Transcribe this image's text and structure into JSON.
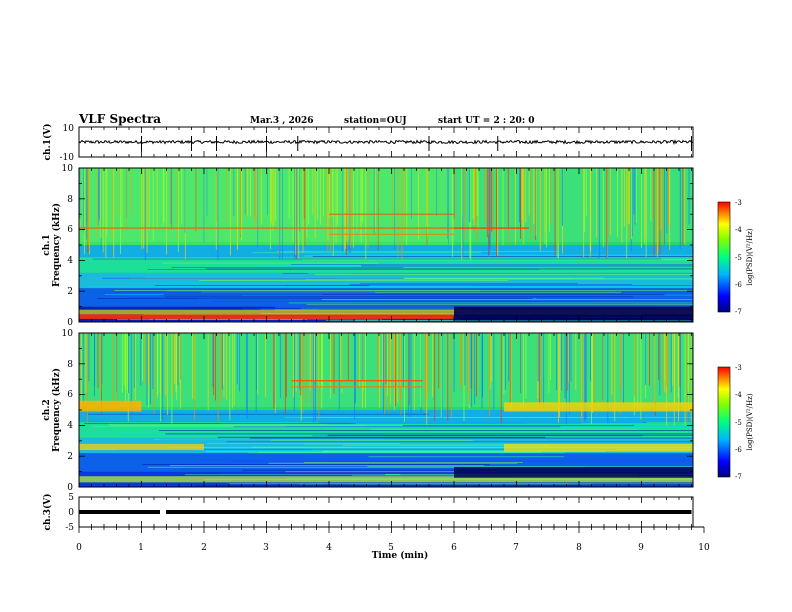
{
  "header": {
    "title": "VLF Spectra",
    "date": "Mar.3  , 2026",
    "station": "station=OUJ",
    "start_time": "start UT =  2 : 20: 0"
  },
  "chart_data": [
    {
      "type": "line",
      "id": "ch1-waveform",
      "ylabel": "ch.1(V)",
      "ylim": [
        -10,
        10
      ],
      "yticks": [
        "10",
        "-10"
      ],
      "xlim": [
        0,
        10
      ],
      "series": [
        {
          "color": "#000000",
          "baseline": 0,
          "noise_amplitude": 1,
          "spikes_at_min": [
            1.0,
            1.8,
            2.2,
            3.0,
            3.5,
            5.6,
            6.7,
            9.8
          ]
        }
      ]
    },
    {
      "type": "heatmap",
      "id": "ch1-spectrogram",
      "ylabel": "ch.1",
      "ylabel2": "Frequency  (kHz)",
      "ylim": [
        0,
        10
      ],
      "yticks": [
        "0",
        "2",
        "4",
        "6",
        "8",
        "10"
      ],
      "xlim": [
        0,
        10
      ],
      "colorbar": {
        "label": "log(PSD)(V²/Hz)",
        "range": [
          -7,
          -3
        ],
        "ticks": [
          "-3",
          "-4",
          "-5",
          "-6",
          "-7"
        ]
      }
    },
    {
      "type": "heatmap",
      "id": "ch2-spectrogram",
      "ylabel": "ch.2",
      "ylabel2": "Frequency  (kHz)",
      "ylim": [
        0,
        10
      ],
      "yticks": [
        "0",
        "2",
        "4",
        "6",
        "8",
        "10"
      ],
      "xlim": [
        0,
        10
      ],
      "colorbar": {
        "label": "log(PSD)(V²/Hz)",
        "range": [
          -7,
          -3
        ],
        "ticks": [
          "-3",
          "-4",
          "-5",
          "-6",
          "-7"
        ]
      }
    },
    {
      "type": "line",
      "id": "ch3-waveform",
      "ylabel": "ch.3(V)",
      "ylim": [
        -5,
        5
      ],
      "yticks": [
        "5",
        "0",
        "-5"
      ],
      "xlim": [
        0,
        10
      ],
      "xticks": [
        "0",
        "1",
        "2",
        "3",
        "4",
        "5",
        "6",
        "7",
        "8",
        "9",
        "10"
      ],
      "xlabel": "Time  (min)",
      "series": [
        {
          "color": "#000000",
          "level": 0,
          "end_min": 9.8
        }
      ]
    }
  ]
}
